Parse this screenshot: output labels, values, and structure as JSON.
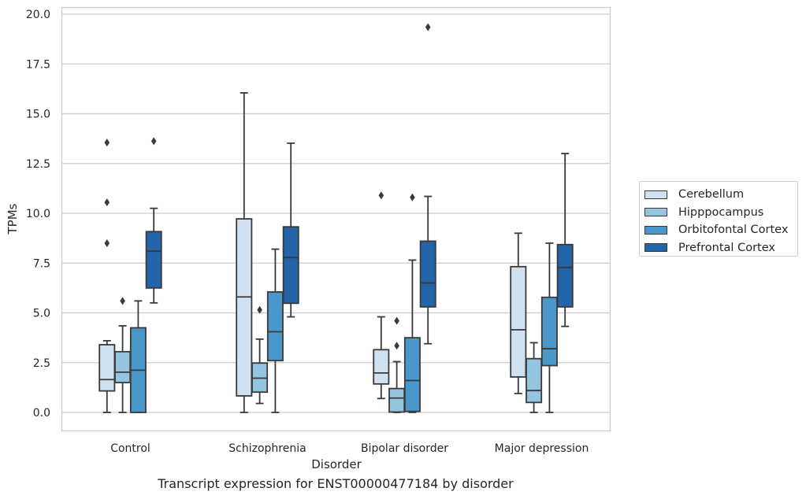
{
  "chart_data": {
    "type": "box",
    "xlabel": "Disorder",
    "ylabel": "TPMs",
    "caption": "Transcript expression for ENST00000477184 by disorder",
    "ylim": [
      -0.95,
      20.45
    ],
    "yticks": [
      "0.0",
      "2.5",
      "5.0",
      "7.5",
      "10.0",
      "12.5",
      "15.0",
      "17.5",
      "20.0"
    ],
    "ytick_values": [
      0,
      2.5,
      5,
      7.5,
      10,
      12.5,
      15,
      17.5,
      20
    ],
    "grid": "horizontal",
    "legend_position": "right",
    "categories": [
      "Control",
      "Schizophrenia",
      "Bipolar disorder",
      "Major depression"
    ],
    "series": [
      {
        "name": "Cerebellum",
        "color": "#d0e1f2",
        "boxes": [
          {
            "whislo": 0.0,
            "q1": 1.08,
            "med": 1.65,
            "q3": 3.4,
            "whishi": 3.6,
            "fliers": [
              8.5,
              10.55,
              13.55
            ]
          },
          {
            "whislo": 0.0,
            "q1": 0.83,
            "med": 5.8,
            "q3": 9.72,
            "whishi": 16.05,
            "fliers": []
          },
          {
            "whislo": 0.7,
            "q1": 1.43,
            "med": 1.98,
            "q3": 3.15,
            "whishi": 4.8,
            "fliers": [
              10.9
            ]
          },
          {
            "whislo": 0.95,
            "q1": 1.78,
            "med": 4.15,
            "q3": 7.32,
            "whishi": 9.0,
            "fliers": []
          }
        ]
      },
      {
        "name": "Hipppocampus",
        "color": "#94c4df",
        "boxes": [
          {
            "whislo": 0.0,
            "q1": 1.5,
            "med": 2.02,
            "q3": 3.05,
            "whishi": 4.35,
            "fliers": [
              5.6
            ]
          },
          {
            "whislo": 0.45,
            "q1": 1.02,
            "med": 1.72,
            "q3": 2.48,
            "whishi": 3.68,
            "fliers": [
              5.15
            ]
          },
          {
            "whislo": 0.0,
            "q1": 0.02,
            "med": 0.72,
            "q3": 1.2,
            "whishi": 2.55,
            "fliers": [
              3.35,
              4.6
            ]
          },
          {
            "whislo": 0.0,
            "q1": 0.5,
            "med": 1.1,
            "q3": 2.7,
            "whishi": 3.5,
            "fliers": []
          }
        ]
      },
      {
        "name": "Orbitofontal Cortex",
        "color": "#4a98c9",
        "boxes": [
          {
            "whislo": 0.0,
            "q1": 0.0,
            "med": 2.12,
            "q3": 4.25,
            "whishi": 5.6,
            "fliers": []
          },
          {
            "whislo": 0.0,
            "q1": 2.6,
            "med": 4.05,
            "q3": 6.05,
            "whishi": 8.2,
            "fliers": []
          },
          {
            "whislo": 0.0,
            "q1": 0.05,
            "med": 1.6,
            "q3": 3.75,
            "whishi": 7.65,
            "fliers": [
              10.8
            ]
          },
          {
            "whislo": 0.0,
            "q1": 2.35,
            "med": 3.2,
            "q3": 5.78,
            "whishi": 8.5,
            "fliers": []
          }
        ]
      },
      {
        "name": "Prefrontal Cortex",
        "color": "#2464a8",
        "boxes": [
          {
            "whislo": 5.5,
            "q1": 6.25,
            "med": 8.1,
            "q3": 9.08,
            "whishi": 10.25,
            "fliers": [
              13.62
            ]
          },
          {
            "whislo": 4.8,
            "q1": 5.48,
            "med": 7.78,
            "q3": 9.32,
            "whishi": 13.52,
            "fliers": []
          },
          {
            "whislo": 3.45,
            "q1": 5.3,
            "med": 6.5,
            "q3": 8.6,
            "whishi": 10.85,
            "fliers": [
              19.35
            ]
          },
          {
            "whislo": 4.32,
            "q1": 5.3,
            "med": 7.28,
            "q3": 8.43,
            "whishi": 13.0,
            "fliers": []
          }
        ]
      }
    ]
  }
}
